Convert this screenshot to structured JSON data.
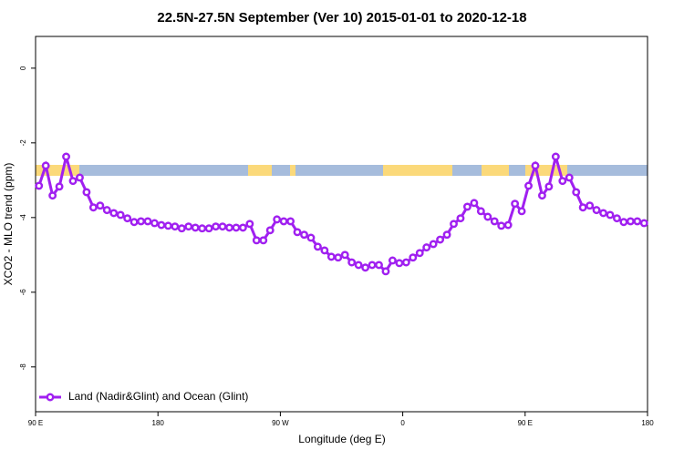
{
  "chart_data": {
    "type": "line",
    "title": "22.5N-27.5N September (Ver 10)   2015-01-01 to 2020-12-18",
    "x_label": "Longitude (deg E)",
    "y_label": "XCO2 - MLO trend (ppm)",
    "x": [
      92.5,
      97.5,
      102.5,
      107.5,
      112.5,
      117.5,
      122.5,
      127.5,
      132.5,
      137.5,
      142.5,
      147.5,
      152.5,
      157.5,
      162.5,
      167.5,
      172.5,
      177.5,
      182.5,
      187.5,
      192.5,
      197.5,
      202.5,
      207.5,
      212.5,
      217.5,
      222.5,
      227.5,
      232.5,
      237.5,
      242.5,
      247.5,
      252.5,
      257.5,
      262.5,
      267.5,
      272.5,
      277.5,
      282.5,
      287.5,
      292.5,
      297.5,
      302.5,
      307.5,
      312.5,
      317.5,
      322.5,
      327.5,
      332.5,
      337.5,
      342.5,
      347.5,
      352.5,
      357.5,
      362.5,
      367.5,
      372.5,
      377.5,
      382.5,
      387.5,
      392.5,
      397.5,
      402.5,
      407.5,
      412.5,
      417.5,
      422.5,
      427.5,
      432.5,
      437.5,
      442.5,
      447.5,
      452.5,
      457.5,
      462.5,
      467.5,
      472.5,
      477.5,
      482.5,
      487.5,
      492.5,
      497.5,
      502.5,
      507.5,
      512.5,
      517.5,
      522.5,
      527.5,
      532.5,
      537.5
    ],
    "series": [
      {
        "name": "Land (Nadir&Glint) and Ocean (Glint)",
        "color": "#a020f0",
        "values": [
          -3.15,
          -2.61,
          -3.41,
          -3.17,
          -2.37,
          -3.02,
          -2.93,
          -3.32,
          -3.73,
          -3.68,
          -3.8,
          -3.88,
          -3.93,
          -4.02,
          -4.12,
          -4.1,
          -4.1,
          -4.15,
          -4.2,
          -4.22,
          -4.24,
          -4.29,
          -4.24,
          -4.27,
          -4.29,
          -4.29,
          -4.24,
          -4.24,
          -4.27,
          -4.27,
          -4.27,
          -4.17,
          -4.61,
          -4.61,
          -4.34,
          -4.05,
          -4.1,
          -4.1,
          -4.39,
          -4.46,
          -4.54,
          -4.78,
          -4.88,
          -5.05,
          -5.07,
          -5.0,
          -5.2,
          -5.27,
          -5.34,
          -5.27,
          -5.27,
          -5.44,
          -5.15,
          -5.22,
          -5.2,
          -5.07,
          -4.95,
          -4.8,
          -4.71,
          -4.59,
          -4.46,
          -4.17,
          -4.02,
          -3.71,
          -3.61,
          -3.83,
          -3.98,
          -4.1,
          -4.22,
          -4.2,
          -3.63,
          -3.83,
          -3.15,
          -2.61,
          -3.41,
          -3.17,
          -2.37,
          -3.02,
          -2.93,
          -3.32,
          -3.73,
          -3.68,
          -3.8,
          -3.88,
          -3.93,
          -4.02,
          -4.12,
          -4.1,
          -4.1,
          -4.15
        ]
      }
    ],
    "xlim": [
      90,
      540
    ],
    "xticks": [
      {
        "value": 90,
        "label": "90 E"
      },
      180,
      {
        "value": 270,
        "label": "90 W"
      },
      {
        "value": 360,
        "label": "0"
      },
      {
        "value": 450,
        "label": "90 E"
      },
      {
        "value": 540,
        "label": "180"
      }
    ],
    "ylim": [
      -9.2,
      0.85
    ],
    "yticks": [
      0,
      -2,
      -4,
      -6,
      -8
    ],
    "legend": "bottom-left"
  }
}
